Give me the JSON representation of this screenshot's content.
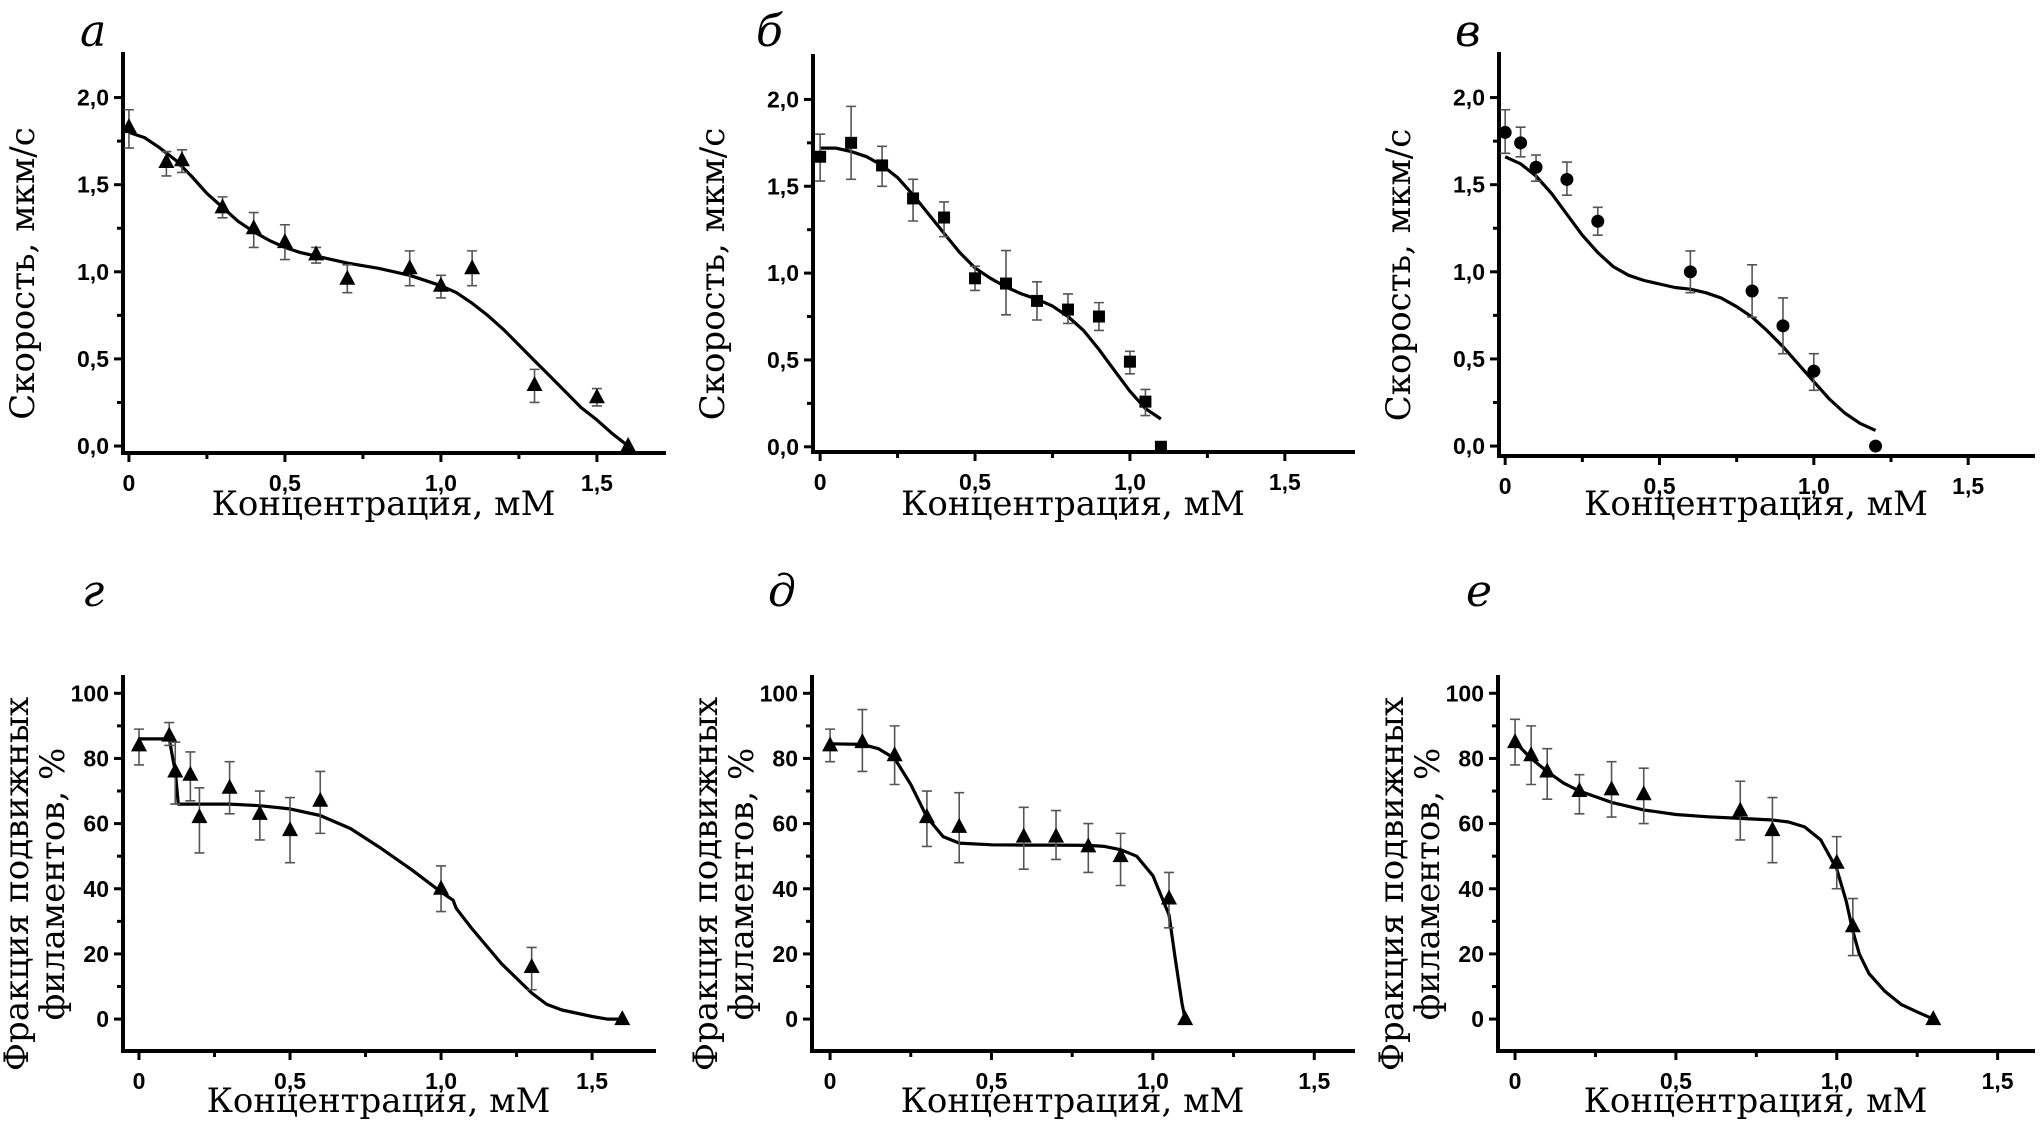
{
  "figure": {
    "background": "#ffffff",
    "ink_color": "#000000",
    "errorbar_color": "#555555"
  },
  "chart_data": [
    {
      "id": "a",
      "panel_label": "а",
      "type": "scatter",
      "marker": "triangle",
      "xlabel": "Концентрация, мМ",
      "ylabel": "Скорость, мкм/с",
      "ylabel_lines": [
        "Скорость, мкм/с"
      ],
      "xlim": [
        -0.019,
        1.715
      ],
      "ylim": [
        -0.04,
        2.25
      ],
      "xticks": [
        0,
        0.5,
        1.0,
        1.5
      ],
      "xtick_labels": [
        "0",
        "0,5",
        "1,0",
        "1,5"
      ],
      "xminor": [
        0.25,
        0.75,
        1.25
      ],
      "yticks": [
        0,
        0.5,
        1.0,
        1.5,
        2.0
      ],
      "ytick_labels": [
        "0,0",
        "0,5",
        "1,0",
        "1,5",
        "2,0"
      ],
      "yminor": [
        0.25,
        0.75,
        1.25,
        1.75
      ],
      "points": [
        {
          "x": 0,
          "y": 1.83,
          "lo": 1.71,
          "hi": 1.93
        },
        {
          "x": 0.12,
          "y": 1.63,
          "lo": 1.55,
          "hi": 1.69
        },
        {
          "x": 0.17,
          "y": 1.64,
          "lo": 1.57,
          "hi": 1.7
        },
        {
          "x": 0.3,
          "y": 1.37,
          "lo": 1.31,
          "hi": 1.43
        },
        {
          "x": 0.4,
          "y": 1.25,
          "lo": 1.14,
          "hi": 1.34
        },
        {
          "x": 0.5,
          "y": 1.17,
          "lo": 1.07,
          "hi": 1.27
        },
        {
          "x": 0.6,
          "y": 1.1,
          "lo": 1.05,
          "hi": 1.14
        },
        {
          "x": 0.7,
          "y": 0.96,
          "lo": 0.88,
          "hi": 1.04
        },
        {
          "x": 0.9,
          "y": 1.02,
          "lo": 0.92,
          "hi": 1.12
        },
        {
          "x": 1.0,
          "y": 0.92,
          "lo": 0.85,
          "hi": 0.98
        },
        {
          "x": 1.1,
          "y": 1.02,
          "lo": 0.92,
          "hi": 1.12
        },
        {
          "x": 1.3,
          "y": 0.35,
          "lo": 0.25,
          "hi": 0.44
        },
        {
          "x": 1.5,
          "y": 0.28,
          "lo": 0.23,
          "hi": 0.33
        },
        {
          "x": 1.6,
          "y": 0.0
        }
      ],
      "fit": [
        [
          0,
          1.8
        ],
        [
          0.05,
          1.77
        ],
        [
          0.1,
          1.71
        ],
        [
          0.15,
          1.64
        ],
        [
          0.2,
          1.55
        ],
        [
          0.25,
          1.45
        ],
        [
          0.3,
          1.37
        ],
        [
          0.35,
          1.29
        ],
        [
          0.4,
          1.23
        ],
        [
          0.45,
          1.18
        ],
        [
          0.5,
          1.14
        ],
        [
          0.55,
          1.11
        ],
        [
          0.6,
          1.09
        ],
        [
          0.7,
          1.05
        ],
        [
          0.8,
          1.02
        ],
        [
          0.9,
          0.98
        ],
        [
          1.0,
          0.92
        ],
        [
          1.05,
          0.88
        ],
        [
          1.1,
          0.82
        ],
        [
          1.15,
          0.75
        ],
        [
          1.2,
          0.67
        ],
        [
          1.25,
          0.58
        ],
        [
          1.3,
          0.49
        ],
        [
          1.35,
          0.4
        ],
        [
          1.4,
          0.31
        ],
        [
          1.45,
          0.22
        ],
        [
          1.5,
          0.15
        ],
        [
          1.55,
          0.07
        ],
        [
          1.6,
          0.0
        ]
      ]
    },
    {
      "id": "b",
      "panel_label": "б",
      "type": "scatter",
      "marker": "square",
      "xlabel": "Концентрация, мМ",
      "ylabel": "Скорость, мкм/с",
      "ylabel_lines": [
        "Скорость, мкм/с"
      ],
      "xlim": [
        -0.023,
        1.72
      ],
      "ylim": [
        -0.03,
        2.25
      ],
      "xticks": [
        0,
        0.5,
        1.0,
        1.5
      ],
      "xtick_labels": [
        "0",
        "0,5",
        "1,0",
        "1,5"
      ],
      "xminor": [
        0.25,
        0.75,
        1.25
      ],
      "yticks": [
        0,
        0.5,
        1.0,
        1.5,
        2.0
      ],
      "ytick_labels": [
        "0,0",
        "0,5",
        "1,0",
        "1,5",
        "2,0"
      ],
      "yminor": [
        0.25,
        0.75,
        1.25,
        1.75
      ],
      "points": [
        {
          "x": 0,
          "y": 1.67,
          "lo": 1.53,
          "hi": 1.8
        },
        {
          "x": 0.1,
          "y": 1.75,
          "lo": 1.54,
          "hi": 1.96
        },
        {
          "x": 0.2,
          "y": 1.62,
          "lo": 1.5,
          "hi": 1.73
        },
        {
          "x": 0.3,
          "y": 1.43,
          "lo": 1.3,
          "hi": 1.54
        },
        {
          "x": 0.4,
          "y": 1.32,
          "lo": 1.21,
          "hi": 1.41
        },
        {
          "x": 0.5,
          "y": 0.97,
          "lo": 0.9,
          "hi": 1.04
        },
        {
          "x": 0.6,
          "y": 0.94,
          "lo": 0.76,
          "hi": 1.13
        },
        {
          "x": 0.7,
          "y": 0.84,
          "lo": 0.73,
          "hi": 0.95
        },
        {
          "x": 0.8,
          "y": 0.79,
          "lo": 0.71,
          "hi": 0.88
        },
        {
          "x": 0.9,
          "y": 0.75,
          "lo": 0.67,
          "hi": 0.83
        },
        {
          "x": 1.0,
          "y": 0.49,
          "lo": 0.42,
          "hi": 0.55
        },
        {
          "x": 1.05,
          "y": 0.26,
          "lo": 0.18,
          "hi": 0.33
        },
        {
          "x": 1.1,
          "y": 0.0
        }
      ],
      "fit": [
        [
          0,
          1.72
        ],
        [
          0.05,
          1.72
        ],
        [
          0.1,
          1.7
        ],
        [
          0.15,
          1.67
        ],
        [
          0.2,
          1.62
        ],
        [
          0.25,
          1.55
        ],
        [
          0.3,
          1.45
        ],
        [
          0.35,
          1.34
        ],
        [
          0.4,
          1.23
        ],
        [
          0.45,
          1.12
        ],
        [
          0.5,
          1.03
        ],
        [
          0.55,
          0.97
        ],
        [
          0.6,
          0.92
        ],
        [
          0.65,
          0.88
        ],
        [
          0.7,
          0.85
        ],
        [
          0.75,
          0.81
        ],
        [
          0.8,
          0.75
        ],
        [
          0.85,
          0.67
        ],
        [
          0.9,
          0.56
        ],
        [
          0.95,
          0.44
        ],
        [
          1.0,
          0.32
        ],
        [
          1.05,
          0.22
        ],
        [
          1.1,
          0.16
        ]
      ]
    },
    {
      "id": "c",
      "panel_label": "в",
      "type": "scatter",
      "marker": "circle",
      "xlabel": "Концентрация, мМ",
      "ylabel": "Скорость, мкм/с",
      "ylabel_lines": [
        "Скорость, мкм/с"
      ],
      "xlim": [
        -0.02,
        1.71
      ],
      "ylim": [
        -0.057,
        2.25
      ],
      "xticks": [
        0,
        0.5,
        1.0,
        1.5
      ],
      "xtick_labels": [
        "0",
        "0,5",
        "1,0",
        "1,5"
      ],
      "xminor": [
        0.25,
        0.75,
        1.25
      ],
      "yticks": [
        0,
        0.5,
        1.0,
        1.5,
        2.0
      ],
      "ytick_labels": [
        "0,0",
        "0,5",
        "1,0",
        "1,5",
        "2,0"
      ],
      "yminor": [
        0.25,
        0.75,
        1.25,
        1.75
      ],
      "points": [
        {
          "x": 0,
          "y": 1.8,
          "lo": 1.68,
          "hi": 1.93
        },
        {
          "x": 0.05,
          "y": 1.74,
          "lo": 1.66,
          "hi": 1.83
        },
        {
          "x": 0.1,
          "y": 1.6,
          "lo": 1.52,
          "hi": 1.67
        },
        {
          "x": 0.2,
          "y": 1.53,
          "lo": 1.44,
          "hi": 1.63
        },
        {
          "x": 0.3,
          "y": 1.29,
          "lo": 1.21,
          "hi": 1.37
        },
        {
          "x": 0.6,
          "y": 1.0,
          "lo": 0.88,
          "hi": 1.12
        },
        {
          "x": 0.8,
          "y": 0.89,
          "lo": 0.74,
          "hi": 1.04
        },
        {
          "x": 0.9,
          "y": 0.69,
          "lo": 0.53,
          "hi": 0.85
        },
        {
          "x": 1.0,
          "y": 0.43,
          "lo": 0.32,
          "hi": 0.53
        },
        {
          "x": 1.2,
          "y": 0.0
        }
      ],
      "fit": [
        [
          0,
          1.66
        ],
        [
          0.05,
          1.62
        ],
        [
          0.1,
          1.55
        ],
        [
          0.15,
          1.45
        ],
        [
          0.2,
          1.33
        ],
        [
          0.25,
          1.21
        ],
        [
          0.3,
          1.11
        ],
        [
          0.35,
          1.03
        ],
        [
          0.4,
          0.98
        ],
        [
          0.45,
          0.95
        ],
        [
          0.5,
          0.93
        ],
        [
          0.55,
          0.91
        ],
        [
          0.6,
          0.9
        ],
        [
          0.65,
          0.88
        ],
        [
          0.7,
          0.85
        ],
        [
          0.75,
          0.8
        ],
        [
          0.8,
          0.74
        ],
        [
          0.85,
          0.66
        ],
        [
          0.9,
          0.57
        ],
        [
          0.95,
          0.47
        ],
        [
          1.0,
          0.37
        ],
        [
          1.05,
          0.27
        ],
        [
          1.1,
          0.19
        ],
        [
          1.15,
          0.13
        ],
        [
          1.2,
          0.09
        ]
      ]
    },
    {
      "id": "d",
      "panel_label": "г",
      "type": "scatter",
      "marker": "triangle",
      "xlabel": "Концентрация, мМ",
      "ylabel": "Фракция подвижных филаментов, %",
      "ylabel_lines": [
        "Фракция подвижных",
        "филаментов, %"
      ],
      "xlim": [
        -0.053,
        1.705
      ],
      "ylim": [
        -9.8,
        105
      ],
      "xticks": [
        0,
        0.5,
        1.0,
        1.5
      ],
      "xtick_labels": [
        "0",
        "0,5",
        "1,0",
        "1,5"
      ],
      "xminor": [
        0.25,
        0.75,
        1.25
      ],
      "yticks": [
        0,
        20,
        40,
        60,
        80,
        100
      ],
      "ytick_labels": [
        "0",
        "20",
        "40",
        "60",
        "80",
        "100"
      ],
      "yminor": [
        10,
        30,
        50,
        70,
        90
      ],
      "points": [
        {
          "x": 0,
          "y": 84,
          "lo": 78,
          "hi": 89
        },
        {
          "x": 0.1,
          "y": 87,
          "lo": 84,
          "hi": 91
        },
        {
          "x": 0.12,
          "y": 76,
          "lo": 66,
          "hi": 85
        },
        {
          "x": 0.17,
          "y": 75,
          "lo": 67,
          "hi": 82
        },
        {
          "x": 0.2,
          "y": 62,
          "lo": 51,
          "hi": 71
        },
        {
          "x": 0.3,
          "y": 71,
          "lo": 63,
          "hi": 79
        },
        {
          "x": 0.4,
          "y": 63,
          "lo": 55,
          "hi": 70
        },
        {
          "x": 0.5,
          "y": 58,
          "lo": 48,
          "hi": 68
        },
        {
          "x": 0.6,
          "y": 67,
          "lo": 57,
          "hi": 76
        },
        {
          "x": 1.0,
          "y": 40,
          "lo": 33,
          "hi": 47
        },
        {
          "x": 1.3,
          "y": 16,
          "lo": 9,
          "hi": 22
        },
        {
          "x": 1.6,
          "y": 0
        }
      ],
      "fit": [
        [
          0,
          86
        ],
        [
          0.1,
          86
        ],
        [
          0.11,
          81
        ],
        [
          0.12,
          76
        ],
        [
          0.13,
          66
        ],
        [
          0.3,
          66
        ],
        [
          0.4,
          65.5
        ],
        [
          0.5,
          64.5
        ],
        [
          0.6,
          62.5
        ],
        [
          0.7,
          58.5
        ],
        [
          0.8,
          52.5
        ],
        [
          0.9,
          46
        ],
        [
          1.0,
          39
        ],
        [
          1.04,
          36.5
        ],
        [
          1.05,
          34
        ],
        [
          1.1,
          28
        ],
        [
          1.2,
          17
        ],
        [
          1.3,
          8
        ],
        [
          1.35,
          4.5
        ],
        [
          1.4,
          2.8
        ],
        [
          1.5,
          0.8
        ],
        [
          1.55,
          0
        ],
        [
          1.6,
          0
        ]
      ]
    },
    {
      "id": "e",
      "panel_label": "д",
      "type": "scatter",
      "marker": "triangle",
      "xlabel": "Концентрация, мМ",
      "ylabel": "Фракция подвижных филаментов, %",
      "ylabel_lines": [
        "Фракция подвижных",
        "филаментов, %"
      ],
      "xlim": [
        -0.056,
        1.62
      ],
      "ylim": [
        -9.8,
        105
      ],
      "xticks": [
        0,
        0.5,
        1.0,
        1.5
      ],
      "xtick_labels": [
        "0",
        "0,5",
        "1,0",
        "1,5"
      ],
      "xminor": [
        0.25,
        0.75,
        1.25
      ],
      "yticks": [
        0,
        20,
        40,
        60,
        80,
        100
      ],
      "ytick_labels": [
        "0",
        "20",
        "40",
        "60",
        "80",
        "100"
      ],
      "yminor": [
        10,
        30,
        50,
        70,
        90
      ],
      "points": [
        {
          "x": 0,
          "y": 84,
          "lo": 79,
          "hi": 89
        },
        {
          "x": 0.1,
          "y": 85,
          "lo": 76,
          "hi": 95
        },
        {
          "x": 0.2,
          "y": 81,
          "lo": 72,
          "hi": 90
        },
        {
          "x": 0.3,
          "y": 62,
          "lo": 53,
          "hi": 70
        },
        {
          "x": 0.4,
          "y": 59,
          "lo": 48,
          "hi": 69.5
        },
        {
          "x": 0.6,
          "y": 56,
          "lo": 46,
          "hi": 65
        },
        {
          "x": 0.7,
          "y": 56,
          "lo": 49,
          "hi": 64
        },
        {
          "x": 0.8,
          "y": 53,
          "lo": 45,
          "hi": 60
        },
        {
          "x": 0.9,
          "y": 50,
          "lo": 41,
          "hi": 57
        },
        {
          "x": 1.05,
          "y": 37,
          "lo": 28,
          "hi": 45
        },
        {
          "x": 1.1,
          "y": 0
        }
      ],
      "fit": [
        [
          0,
          84.5
        ],
        [
          0.1,
          84.3
        ],
        [
          0.15,
          83
        ],
        [
          0.2,
          80
        ],
        [
          0.25,
          72
        ],
        [
          0.3,
          62
        ],
        [
          0.35,
          56
        ],
        [
          0.4,
          54
        ],
        [
          0.5,
          53.5
        ],
        [
          0.6,
          53.4
        ],
        [
          0.7,
          53.4
        ],
        [
          0.8,
          53.3
        ],
        [
          0.85,
          53
        ],
        [
          0.9,
          52
        ],
        [
          0.95,
          50
        ],
        [
          1.0,
          44
        ],
        [
          1.05,
          32
        ],
        [
          1.07,
          18
        ],
        [
          1.09,
          5
        ],
        [
          1.1,
          0
        ]
      ]
    },
    {
      "id": "f",
      "panel_label": "е",
      "type": "scatter",
      "marker": "triangle",
      "xlabel": "Концентрация, мМ",
      "ylabel": "Фракция подвижных филаментов, %",
      "ylabel_lines": [
        "Фракция подвижных",
        "филаментов, %"
      ],
      "xlim": [
        -0.053,
        1.61
      ],
      "ylim": [
        -9.8,
        105
      ],
      "xticks": [
        0,
        0.5,
        1.0,
        1.5
      ],
      "xtick_labels": [
        "0",
        "0,5",
        "1,0",
        "1,5"
      ],
      "xminor": [
        0.25,
        0.75,
        1.25
      ],
      "yticks": [
        0,
        20,
        40,
        60,
        80,
        100
      ],
      "ytick_labels": [
        "0",
        "20",
        "40",
        "60",
        "80",
        "100"
      ],
      "yminor": [
        10,
        30,
        50,
        70,
        90
      ],
      "points": [
        {
          "x": 0,
          "y": 85,
          "lo": 78,
          "hi": 92
        },
        {
          "x": 0.05,
          "y": 81,
          "lo": 72,
          "hi": 90
        },
        {
          "x": 0.1,
          "y": 76,
          "lo": 67.5,
          "hi": 83
        },
        {
          "x": 0.2,
          "y": 70,
          "lo": 63,
          "hi": 75
        },
        {
          "x": 0.3,
          "y": 70.5,
          "lo": 62,
          "hi": 79
        },
        {
          "x": 0.4,
          "y": 69,
          "lo": 60,
          "hi": 77
        },
        {
          "x": 0.7,
          "y": 64,
          "lo": 55,
          "hi": 73
        },
        {
          "x": 0.8,
          "y": 58,
          "lo": 48,
          "hi": 68
        },
        {
          "x": 1.0,
          "y": 48,
          "lo": 40,
          "hi": 56
        },
        {
          "x": 1.05,
          "y": 28.5,
          "lo": 19.5,
          "hi": 37
        },
        {
          "x": 1.3,
          "y": 0
        }
      ],
      "fit": [
        [
          0,
          85
        ],
        [
          0.05,
          80
        ],
        [
          0.1,
          76
        ],
        [
          0.15,
          72.5
        ],
        [
          0.2,
          70
        ],
        [
          0.3,
          66.5
        ],
        [
          0.4,
          64.2
        ],
        [
          0.5,
          62.8
        ],
        [
          0.6,
          62.1
        ],
        [
          0.7,
          61.6
        ],
        [
          0.8,
          61.1
        ],
        [
          0.85,
          60.5
        ],
        [
          0.9,
          59
        ],
        [
          0.95,
          55
        ],
        [
          1.0,
          46
        ],
        [
          1.03,
          36
        ],
        [
          1.05,
          27
        ],
        [
          1.07,
          20
        ],
        [
          1.1,
          14
        ],
        [
          1.15,
          8.5
        ],
        [
          1.2,
          4.5
        ],
        [
          1.25,
          2.2
        ],
        [
          1.3,
          0
        ]
      ]
    }
  ]
}
